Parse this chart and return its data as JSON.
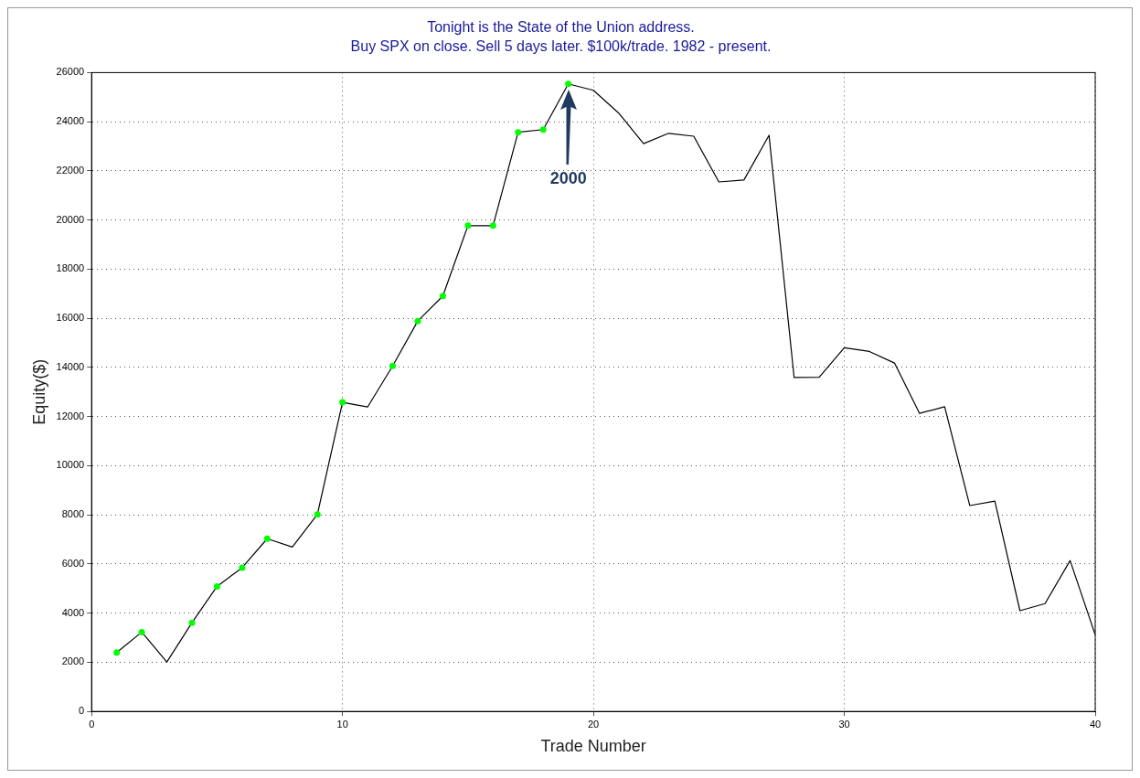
{
  "chart_data": {
    "type": "line",
    "title": "Tonight is the State of the Union address.",
    "subtitle": "Buy SPX on close. Sell 5 days later. $100k/trade. 1982 - present.",
    "xlabel": "Trade Number",
    "ylabel": "Equity($)",
    "x": [
      1,
      2,
      3,
      4,
      5,
      6,
      7,
      8,
      9,
      10,
      11,
      12,
      13,
      14,
      15,
      16,
      17,
      18,
      19,
      20,
      21,
      22,
      23,
      24,
      25,
      26,
      27,
      28,
      29,
      30,
      31,
      32,
      33,
      34,
      35,
      36,
      37,
      38,
      39,
      40
    ],
    "series": [
      {
        "type": "line",
        "color": "#000000",
        "marker": "none",
        "values": [
          2400,
          3230,
          2010,
          3610,
          5090,
          5850,
          7030,
          6690,
          8020,
          12580,
          12390,
          14060,
          15890,
          16910,
          19770,
          19770,
          23570,
          23680,
          25540,
          25280,
          24360,
          23110,
          23530,
          23410,
          21550,
          21630,
          23450,
          13590,
          13600,
          14800,
          14650,
          14180,
          12130,
          12400,
          8380,
          8560,
          4100,
          4390,
          6140,
          3120
        ]
      },
      {
        "type": "scatter",
        "color": "#00ff00",
        "marker": "circle",
        "x": [
          1,
          2,
          4,
          5,
          6,
          7,
          9,
          10,
          12,
          13,
          14,
          15,
          16,
          17,
          18,
          19
        ],
        "values": [
          2400,
          3230,
          3610,
          5090,
          5850,
          7030,
          8020,
          12580,
          14060,
          15890,
          16910,
          19770,
          19770,
          23570,
          23680,
          25540
        ]
      }
    ],
    "xlim": [
      0,
      40
    ],
    "xticks": [
      0,
      10,
      20,
      30,
      40
    ],
    "ylim": [
      0,
      26000
    ],
    "yticks": [
      0,
      2000,
      4000,
      6000,
      8000,
      10000,
      12000,
      14000,
      16000,
      18000,
      20000,
      22000,
      24000,
      26000
    ],
    "grid": true,
    "legend": false,
    "annotations": [
      "2000"
    ]
  }
}
